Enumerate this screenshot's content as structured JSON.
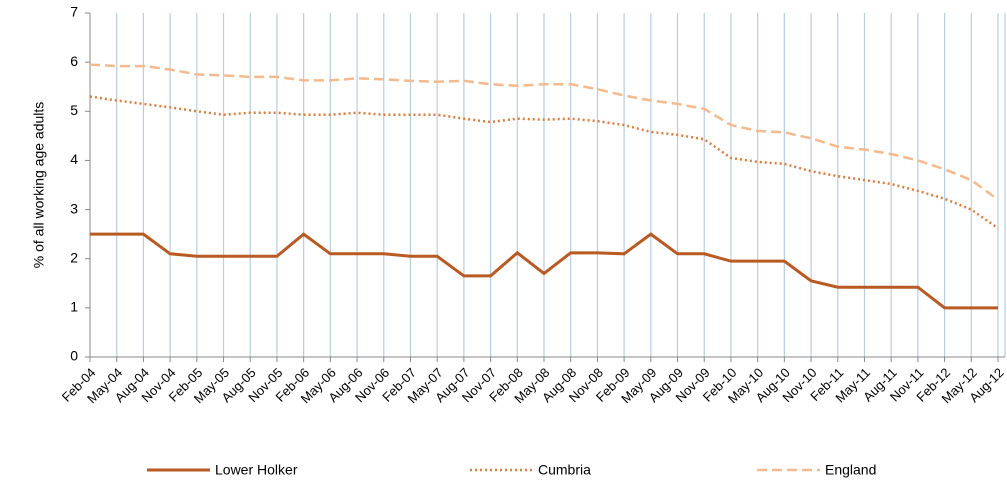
{
  "chart_data": {
    "type": "line",
    "y_label": "% of all working age adults",
    "categories": [
      "Feb-04",
      "May-04",
      "Aug-04",
      "Nov-04",
      "Feb-05",
      "May-05",
      "Aug-05",
      "Nov-05",
      "Feb-06",
      "May-06",
      "Aug-06",
      "Nov-06",
      "Feb-07",
      "May-07",
      "Aug-07",
      "Nov-07",
      "Feb-08",
      "May-08",
      "Aug-08",
      "Nov-08",
      "Feb-09",
      "May-09",
      "Aug-09",
      "Nov-09",
      "Feb-10",
      "May-10",
      "Aug-10",
      "Nov-10",
      "Feb-11",
      "May-11",
      "Aug-11",
      "Nov-11",
      "Feb-12",
      "May-12",
      "Aug-12"
    ],
    "series": [
      {
        "name": "Lower Holker",
        "color": "#b85a22",
        "dash": "solid",
        "values": [
          2.5,
          2.5,
          2.5,
          2.1,
          2.05,
          2.05,
          2.05,
          2.05,
          2.5,
          2.1,
          2.1,
          2.1,
          2.05,
          2.05,
          1.65,
          1.65,
          2.12,
          1.7,
          2.12,
          2.12,
          2.1,
          2.5,
          2.1,
          2.1,
          1.95,
          1.95,
          1.95,
          1.55,
          1.42,
          1.42,
          1.42,
          1.42,
          1.0,
          1.0,
          1.0
        ]
      },
      {
        "name": "Cumbria",
        "color": "#e07b39",
        "dash": "dotted",
        "values": [
          5.3,
          5.22,
          5.15,
          5.08,
          5.0,
          4.93,
          4.97,
          4.97,
          4.93,
          4.93,
          4.97,
          4.93,
          4.93,
          4.93,
          4.85,
          4.78,
          4.85,
          4.83,
          4.85,
          4.8,
          4.72,
          4.58,
          4.52,
          4.43,
          4.05,
          3.97,
          3.93,
          3.78,
          3.68,
          3.6,
          3.52,
          3.38,
          3.22,
          3.0,
          2.62
        ]
      },
      {
        "name": "England",
        "color": "#f5b98c",
        "dash": "dashed",
        "values": [
          5.95,
          5.92,
          5.92,
          5.85,
          5.75,
          5.73,
          5.7,
          5.7,
          5.63,
          5.63,
          5.67,
          5.65,
          5.62,
          5.6,
          5.62,
          5.55,
          5.52,
          5.55,
          5.55,
          5.45,
          5.32,
          5.22,
          5.15,
          5.05,
          4.72,
          4.6,
          4.57,
          4.45,
          4.28,
          4.22,
          4.13,
          4.0,
          3.82,
          3.6,
          3.2
        ]
      }
    ],
    "ylim": [
      0,
      7
    ],
    "yticks": [
      0,
      1,
      2,
      3,
      4,
      5,
      6,
      7
    ],
    "vertical_grid": true,
    "legend": "bottom"
  }
}
